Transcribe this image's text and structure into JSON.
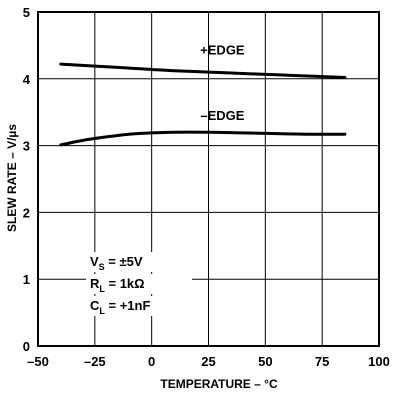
{
  "chart_data": {
    "type": "line",
    "title": "",
    "xlabel": "TEMPERATURE – °C",
    "ylabel": "SLEW RATE – V/µs",
    "xlim": [
      -50,
      100
    ],
    "ylim": [
      0,
      5
    ],
    "x_ticks": [
      -50,
      -25,
      0,
      25,
      50,
      75,
      100
    ],
    "y_ticks": [
      0,
      1,
      2,
      3,
      4,
      5
    ],
    "x_tick_labels": [
      "–50",
      "–25",
      "0",
      "25",
      "50",
      "75",
      "100"
    ],
    "y_tick_labels": [
      "0",
      "1",
      "2",
      "3",
      "4",
      "5"
    ],
    "grid": true,
    "series": [
      {
        "name": "+EDGE",
        "x": [
          -40,
          -25,
          -10,
          0,
          10,
          25,
          40,
          55,
          70,
          85
        ],
        "y": [
          4.22,
          4.19,
          4.16,
          4.14,
          4.12,
          4.1,
          4.08,
          4.06,
          4.04,
          4.02
        ],
        "color": "#000000"
      },
      {
        "name": "–EDGE",
        "x": [
          -40,
          -30,
          -20,
          -10,
          0,
          10,
          25,
          40,
          55,
          70,
          85
        ],
        "y": [
          3.01,
          3.08,
          3.13,
          3.17,
          3.19,
          3.2,
          3.2,
          3.19,
          3.18,
          3.17,
          3.17
        ],
        "color": "#000000"
      }
    ],
    "annotations": [
      {
        "text": "+EDGE",
        "x": 10,
        "y": 4.44
      },
      {
        "text": "–EDGE",
        "x": 10,
        "y": 3.46
      }
    ],
    "conditions": [
      {
        "main": "V",
        "sub": "S",
        "rest": " = ±5V"
      },
      {
        "main": "R",
        "sub": "L",
        "rest": " = 1kΩ"
      },
      {
        "main": "C",
        "sub": "L",
        "rest": " = +1nF"
      }
    ]
  }
}
